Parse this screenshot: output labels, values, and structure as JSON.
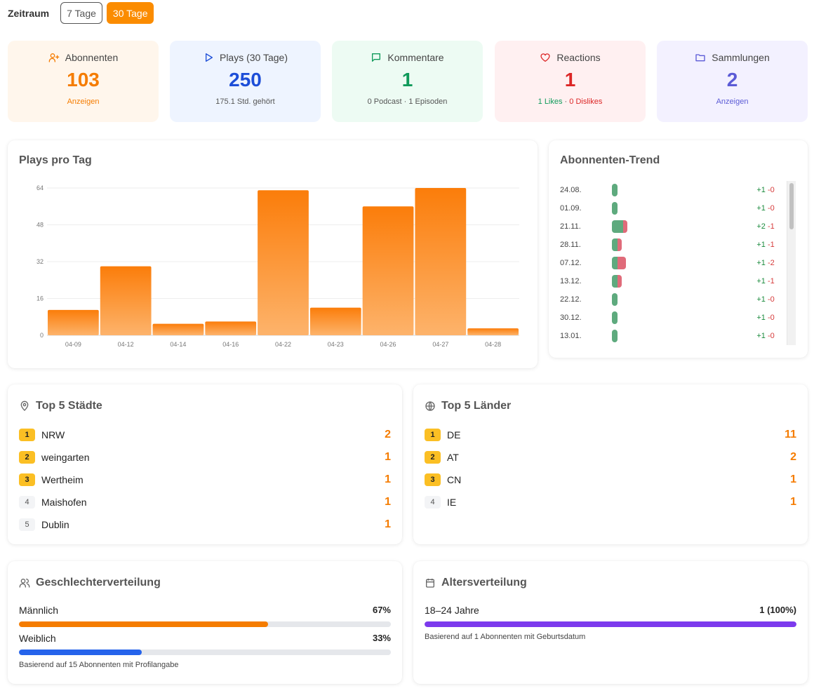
{
  "range": {
    "label": "Zeitraum",
    "options": [
      "7 Tage",
      "30 Tage"
    ],
    "selected": "30 Tage"
  },
  "kpis": [
    {
      "title": "Abonnenten",
      "icon": "user-plus-icon",
      "value": "103",
      "sub": "Anzeigen",
      "color": "#f57c00",
      "bg": "#fff6ec"
    },
    {
      "title": "Plays (30 Tage)",
      "icon": "play-icon",
      "value": "250",
      "sub": "175.1 Std. gehört",
      "color": "#1d4ed8",
      "bg": "#eef4ff"
    },
    {
      "title": "Kommentare",
      "icon": "message-icon",
      "value": "1",
      "sub": "0 Podcast · 1 Episoden",
      "color": "#0f9a5a",
      "bg": "#edfbf3"
    },
    {
      "title": "Reactions",
      "icon": "heart-icon",
      "value": "1",
      "sub_likes": "1 Likes",
      "sub_sep": " · ",
      "sub_dislikes": "0 Dislikes",
      "color": "#dc2626",
      "bg": "#fff0f1"
    },
    {
      "title": "Sammlungen",
      "icon": "folder-icon",
      "value": "2",
      "sub": "Anzeigen",
      "color": "#5b5bd6",
      "bg": "#f3f1ff"
    }
  ],
  "plays_chart": {
    "title": "Plays pro Tag",
    "chart_data": {
      "type": "bar",
      "categories": [
        "04-09",
        "04-12",
        "04-14",
        "04-16",
        "04-22",
        "04-23",
        "04-26",
        "04-27",
        "04-28"
      ],
      "values": [
        11,
        30,
        5,
        6,
        63,
        12,
        56,
        64,
        3
      ],
      "ylim": [
        0,
        64
      ],
      "yticks": [
        0,
        16,
        32,
        48,
        64
      ],
      "grid": true
    }
  },
  "trend": {
    "title": "Abonnenten-Trend",
    "rows": [
      {
        "date": "24.08.",
        "plus": "+1",
        "minus": "-0",
        "p": 1,
        "m": 0
      },
      {
        "date": "01.09.",
        "plus": "+1",
        "minus": "-0",
        "p": 1,
        "m": 0
      },
      {
        "date": "21.11.",
        "plus": "+2",
        "minus": "-1",
        "p": 2,
        "m": 1
      },
      {
        "date": "28.11.",
        "plus": "+1",
        "minus": "-1",
        "p": 1,
        "m": 1
      },
      {
        "date": "07.12.",
        "plus": "+1",
        "minus": "-2",
        "p": 1,
        "m": 2
      },
      {
        "date": "13.12.",
        "plus": "+1",
        "minus": "-1",
        "p": 1,
        "m": 1
      },
      {
        "date": "22.12.",
        "plus": "+1",
        "minus": "-0",
        "p": 1,
        "m": 0
      },
      {
        "date": "30.12.",
        "plus": "+1",
        "minus": "-0",
        "p": 1,
        "m": 0
      },
      {
        "date": "13.01.",
        "plus": "+1",
        "minus": "-0",
        "p": 1,
        "m": 0
      }
    ]
  },
  "cities": {
    "title": "Top 5 Städte",
    "items": [
      {
        "rank": "1",
        "name": "NRW",
        "value": "2"
      },
      {
        "rank": "2",
        "name": "weingarten",
        "value": "1"
      },
      {
        "rank": "3",
        "name": "Wertheim",
        "value": "1"
      },
      {
        "rank": "4",
        "name": "Maishofen",
        "value": "1"
      },
      {
        "rank": "5",
        "name": "Dublin",
        "value": "1"
      }
    ]
  },
  "countries": {
    "title": "Top 5 Länder",
    "items": [
      {
        "rank": "1",
        "name": "DE",
        "value": "11"
      },
      {
        "rank": "2",
        "name": "AT",
        "value": "2"
      },
      {
        "rank": "3",
        "name": "CN",
        "value": "1"
      },
      {
        "rank": "4",
        "name": "IE",
        "value": "1"
      }
    ]
  },
  "gender": {
    "title": "Geschlechterverteilung",
    "rows": [
      {
        "label": "Männlich",
        "pct": "67%",
        "value": 0.67,
        "color": "#f57c00"
      },
      {
        "label": "Weiblich",
        "pct": "33%",
        "value": 0.33,
        "color": "#2563eb"
      }
    ],
    "foot": "Basierend auf 15 Abonnenten mit Profilangabe"
  },
  "age": {
    "title": "Altersverteilung",
    "rows": [
      {
        "label": "18–24 Jahre",
        "pct": "1 (100%)",
        "value": 1.0,
        "color": "#7c3aed"
      }
    ],
    "foot": "Basierend auf 1 Abonnenten mit Geburtsdatum"
  }
}
